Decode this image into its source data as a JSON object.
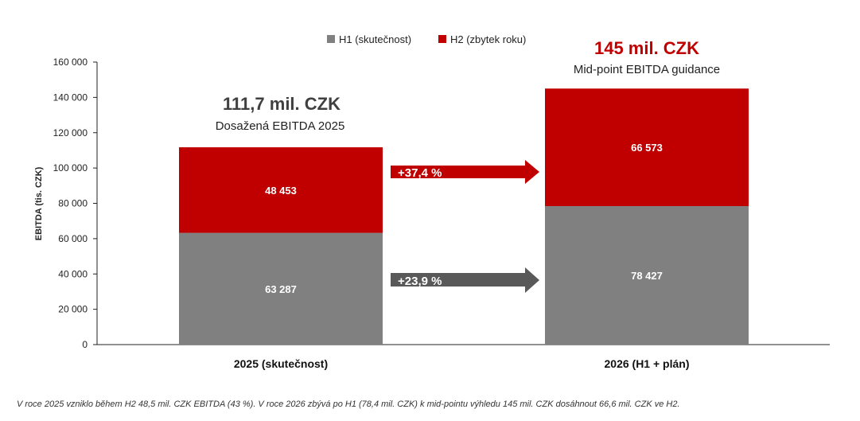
{
  "chart_data": {
    "type": "bar",
    "stacked": true,
    "categories": [
      "2025 (skutečnost)",
      "2026 (H1 + plán)"
    ],
    "series": [
      {
        "name": "H1 (skutečnost)",
        "color": "#808080",
        "values": [
          63287,
          78427
        ],
        "labels": [
          "63 287",
          "78 427"
        ]
      },
      {
        "name": "H2 (zbytek roku)",
        "color": "#C00000",
        "values": [
          48453,
          66573
        ],
        "labels": [
          "48 453",
          "66 573"
        ]
      }
    ],
    "ylabel": "EBITDA (tis. CZK)",
    "ylim": [
      0,
      160000
    ],
    "yticks": [
      0,
      20000,
      40000,
      60000,
      80000,
      100000,
      120000,
      140000,
      160000
    ],
    "ytick_labels": [
      "0",
      "20 000",
      "40 000",
      "60 000",
      "80 000",
      "100 000",
      "120 000",
      "140 000",
      "160 000"
    ],
    "legend": "top-center",
    "grid": false,
    "annotations": {
      "left_title": "111,7 mil. CZK",
      "left_subtitle": "Dosažená EBITDA 2025",
      "left_color": "#404040",
      "right_title": "145 mil. CZK",
      "right_subtitle": "Mid-point EBITDA guidance",
      "right_color": "#C00000",
      "arrow_h2_label": "+37,4 %",
      "arrow_h2_color": "#C00000",
      "arrow_h1_label": "+23,9 %",
      "arrow_h1_color": "#595959"
    }
  },
  "footnote": "V roce 2025 vzniklo během H2 48,5 mil. CZK EBITDA (43 %). V roce 2026 zbývá po H1 (78,4 mil. CZK) k mid-pointu výhledu 145 mil. CZK dosáhnout 66,6 mil. CZK ve H2."
}
